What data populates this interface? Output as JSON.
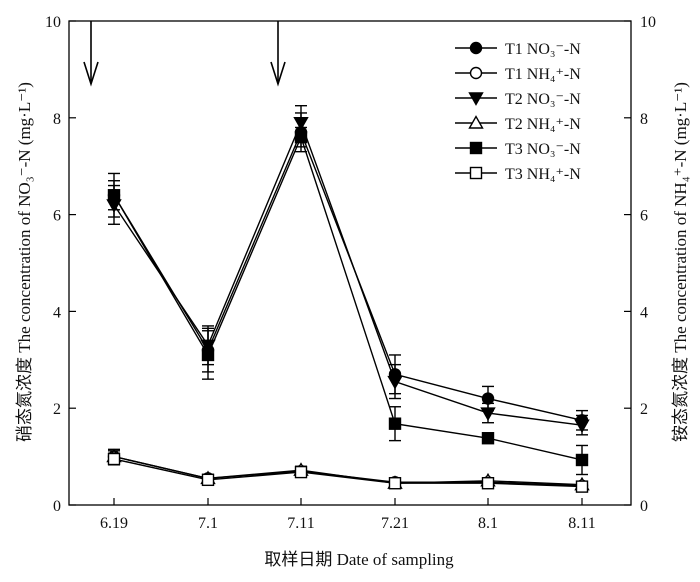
{
  "chart_data": {
    "type": "line",
    "categories": [
      "6.19",
      "7.1",
      "7.11",
      "7.21",
      "8.1",
      "8.11"
    ],
    "xlabel": "取样日期 Date of sampling",
    "ylabel_left": "硝态氮浓度 The concentration of NO₃⁻-N (mg·L⁻¹)",
    "ylabel_right": "铵态氮浓度 The concentration of NH₄⁺-N (mg·L⁻¹)",
    "ylim": [
      0,
      10
    ],
    "yticks": [
      "0",
      "2",
      "4",
      "6",
      "8",
      "10"
    ],
    "right_yticks": [
      "0",
      "2",
      "4",
      "6",
      "8",
      "10"
    ],
    "arrows_at": [
      "between 6.19 and 7.1 (before 6.19)",
      "between 7.1 and 7.11"
    ],
    "legend_position": "top-right",
    "series": [
      {
        "name": "T1 NO₃⁻-N",
        "marker": "circle-filled",
        "values": [
          6.4,
          3.2,
          7.7,
          2.7,
          2.2,
          1.75
        ],
        "errors": [
          0.3,
          0.45,
          0.4,
          0.4,
          0.25,
          0.2
        ]
      },
      {
        "name": "T1 NH₄⁺-N",
        "marker": "circle-open",
        "values": [
          1.0,
          0.55,
          0.7,
          0.47,
          0.47,
          0.4
        ],
        "errors": [
          0.15,
          0.08,
          0.08,
          0.06,
          0.06,
          0.06
        ]
      },
      {
        "name": "T2 NO₃⁻-N",
        "marker": "triangle-down-filled",
        "values": [
          6.2,
          3.3,
          7.9,
          2.55,
          1.9,
          1.65
        ],
        "errors": [
          0.4,
          0.4,
          0.35,
          0.35,
          0.2,
          0.2
        ]
      },
      {
        "name": "T2 NH₄⁺-N",
        "marker": "triangle-up-open",
        "values": [
          1.0,
          0.55,
          0.72,
          0.45,
          0.5,
          0.42
        ],
        "errors": [
          0.12,
          0.08,
          0.08,
          0.06,
          0.06,
          0.06
        ]
      },
      {
        "name": "T3 NO₃⁻-N",
        "marker": "square-filled",
        "values": [
          6.4,
          3.1,
          7.6,
          1.68,
          1.38,
          0.93
        ],
        "errors": [
          0.45,
          0.5,
          0.2,
          0.35,
          0.1,
          0.3
        ]
      },
      {
        "name": "T3 NH₄⁺-N",
        "marker": "square-open",
        "values": [
          0.95,
          0.52,
          0.68,
          0.45,
          0.45,
          0.38
        ],
        "errors": [
          0.12,
          0.08,
          0.08,
          0.06,
          0.06,
          0.06
        ]
      }
    ]
  }
}
